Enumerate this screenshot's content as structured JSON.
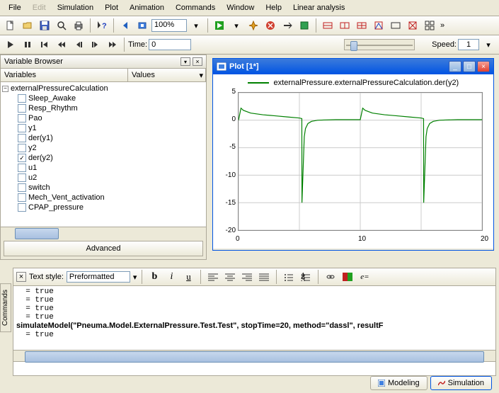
{
  "menu": [
    "File",
    "Edit",
    "Simulation",
    "Plot",
    "Animation",
    "Commands",
    "Window",
    "Help",
    "Linear analysis"
  ],
  "menu_disabled": [
    1
  ],
  "zoom": "100%",
  "time_label": "Time:",
  "time_value": "0",
  "speed_label": "Speed:",
  "speed_value": "1",
  "varbrowser": {
    "title": "Variable Browser",
    "col1": "Variables",
    "col2": "Values",
    "advanced": "Advanced",
    "root": "externalPressureCalculation",
    "items": [
      {
        "label": "Sleep_Awake",
        "checked": false
      },
      {
        "label": "Resp_Rhythm",
        "checked": false
      },
      {
        "label": "Pao",
        "checked": false
      },
      {
        "label": "y1",
        "checked": false
      },
      {
        "label": "der(y1)",
        "checked": false
      },
      {
        "label": "y2",
        "checked": false
      },
      {
        "label": "der(y2)",
        "checked": true
      },
      {
        "label": "u1",
        "checked": false
      },
      {
        "label": "u2",
        "checked": false
      },
      {
        "label": "switch",
        "checked": false
      },
      {
        "label": "Mech_Vent_activation",
        "checked": false
      },
      {
        "label": "CPAP_pressure",
        "checked": false
      }
    ]
  },
  "plot": {
    "title": "Plot [1*]",
    "legend": "externalPressure.externalPressureCalculation.der(y2)",
    "ylim": [
      -20,
      5
    ],
    "yticks": [
      5,
      0,
      -5,
      -10,
      -15,
      -20
    ],
    "xlim": [
      0,
      20
    ],
    "xticks": [
      0,
      10,
      20
    ],
    "line_color": "#008000",
    "grid_color": "#cccccc",
    "series": [
      [
        0,
        0
      ],
      [
        0.2,
        2.2
      ],
      [
        0.4,
        1.8
      ],
      [
        1,
        1.3
      ],
      [
        2,
        1.0
      ],
      [
        3,
        0.8
      ],
      [
        4,
        0.6
      ],
      [
        5,
        0.4
      ],
      [
        5.2,
        0.3
      ],
      [
        5.21,
        -15
      ],
      [
        5.4,
        -3
      ],
      [
        5.5,
        -1.5
      ],
      [
        5.7,
        -0.6
      ],
      [
        6,
        -0.2
      ],
      [
        6.5,
        0
      ],
      [
        7,
        0.05
      ],
      [
        8,
        0.1
      ],
      [
        9,
        0.1
      ],
      [
        10,
        0.1
      ],
      [
        10.2,
        2.2
      ],
      [
        10.4,
        1.8
      ],
      [
        11,
        1.3
      ],
      [
        12,
        1.0
      ],
      [
        13,
        0.8
      ],
      [
        14,
        0.6
      ],
      [
        15,
        0.4
      ],
      [
        15.2,
        0.3
      ],
      [
        15.21,
        -15
      ],
      [
        15.4,
        -3
      ],
      [
        15.5,
        -1.5
      ],
      [
        15.7,
        -0.6
      ],
      [
        16,
        -0.2
      ],
      [
        16.5,
        0
      ],
      [
        17,
        0.05
      ],
      [
        18,
        0.1
      ],
      [
        19,
        0.1
      ],
      [
        20,
        0.1
      ]
    ]
  },
  "console": {
    "style_label": "Text style:",
    "style_value": "Preformatted",
    "lines": [
      "  = true",
      "  = true",
      "  = true",
      "  = true",
      "simulateModel(\"Pneuma.Model.ExternalPressure.Test.Test\", stopTime=20, method=\"dassl\", resultF",
      "  = true"
    ]
  },
  "tabs": {
    "modeling": "Modeling",
    "simulation": "Simulation"
  },
  "sidetab": "Commands",
  "colors": {
    "accent": "#0054e3",
    "green": "#008000",
    "red": "#d04030",
    "bg": "#ece9d8"
  }
}
